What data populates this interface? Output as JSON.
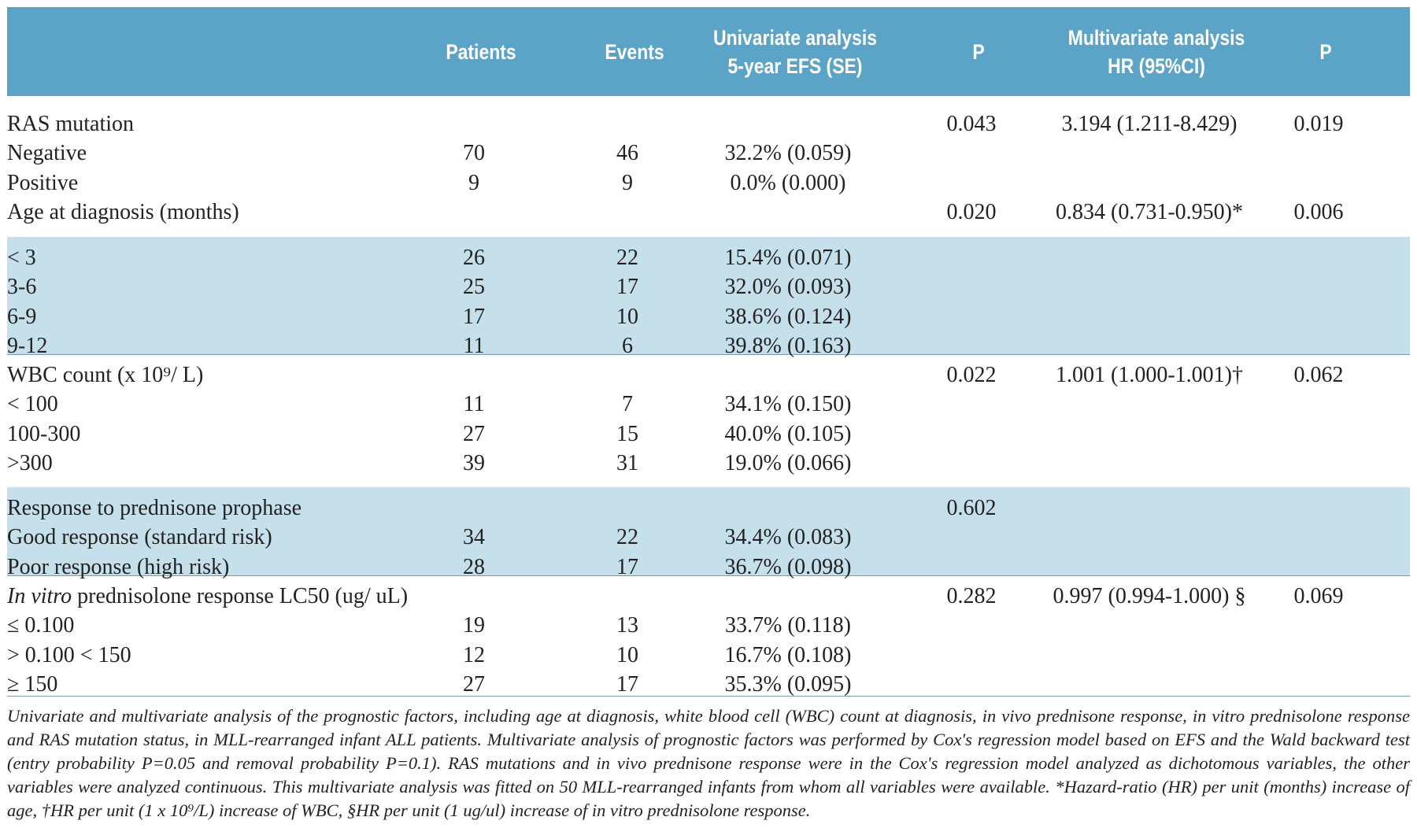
{
  "table": {
    "header": [
      [],
      [
        "Patients"
      ],
      [
        "Events"
      ],
      [
        "Univariate analysis",
        "5-year EFS (SE)"
      ],
      [
        "P"
      ],
      [
        "Multivariate analysis",
        "HR (95%CI)"
      ],
      [
        "P"
      ]
    ],
    "groups": [
      {
        "shaded": false,
        "rows": [
          [
            "RAS mutation",
            null,
            null,
            null,
            "0.043",
            "3.194 (1.211-8.429)",
            "0.019"
          ],
          [
            "Negative",
            "70",
            "46",
            "32.2% (0.059)",
            null,
            null,
            null
          ],
          [
            "Positive",
            "9",
            "9",
            "0.0% (0.000)",
            null,
            null,
            null
          ],
          [
            "Age at diagnosis (months)",
            null,
            null,
            null,
            "0.020",
            "0.834 (0.731-0.950)*",
            "0.006"
          ]
        ]
      },
      {
        "shaded": true,
        "rows": [
          [
            "< 3",
            "26",
            "22",
            "15.4% (0.071)",
            null,
            null,
            null
          ],
          [
            "3-6",
            "25",
            "17",
            "32.0% (0.093)",
            null,
            null,
            null
          ],
          [
            "6-9",
            "17",
            "10",
            "38.6% (0.124)",
            null,
            null,
            null
          ],
          [
            "9-12",
            "11",
            "6",
            "39.8% (0.163)",
            null,
            null,
            null
          ]
        ]
      },
      {
        "shaded": false,
        "rows": [
          [
            "WBC count (x 10⁹/ L)",
            null,
            null,
            null,
            "0.022",
            "1.001 (1.000-1.001)†",
            "0.062"
          ],
          [
            "< 100",
            "11",
            "7",
            "34.1% (0.150)",
            null,
            null,
            null
          ],
          [
            "100-300",
            "27",
            "15",
            "40.0% (0.105)",
            null,
            null,
            null
          ],
          [
            ">300",
            "39",
            "31",
            "19.0% (0.066)",
            null,
            null,
            null
          ]
        ]
      },
      {
        "shaded": true,
        "rows": [
          [
            "Response to prednisone prophase",
            null,
            null,
            null,
            "0.602",
            null,
            null
          ],
          [
            "Good response (standard risk)",
            "34",
            "22",
            "34.4% (0.083)",
            null,
            null,
            null
          ],
          [
            "Poor response (high risk)",
            "28",
            "17",
            "36.7% (0.098)",
            null,
            null,
            null
          ]
        ]
      },
      {
        "shaded": false,
        "rows": [
          [
            [
              {
                "text": "In vitro",
                "italic": true
              },
              {
                "text": " prednisolone response LC50 (ug/ uL)"
              }
            ],
            null,
            null,
            null,
            "0.282",
            "0.997 (0.994-1.000) §",
            "0.069"
          ],
          [
            "≤ 0.100",
            "19",
            "13",
            "33.7% (0.118)",
            null,
            null,
            null
          ],
          [
            "> 0.100 < 150",
            "12",
            "10",
            "16.7% (0.108)",
            null,
            null,
            null
          ],
          [
            "≥ 150",
            "27",
            "17",
            "35.3% (0.095)",
            null,
            null,
            null
          ]
        ]
      }
    ],
    "caption": "Univariate and multivariate analysis of the prognostic factors, including age at diagnosis, white blood cell (WBC) count at diagnosis, in vivo prednisone response, in vitro prednisolone response and RAS mutation status, in MLL-rearranged infant ALL patients. Multivariate analysis of prognostic factors was performed by Cox's regression model based on EFS and the Wald backward test (entry probability P=0.05 and removal probability P=0.1). RAS mutations and in vivo prednisone response were in the Cox's regression model analyzed as dichotomous variables, the other variables were analyzed continuous. This multivariate analysis was fitted on 50 MLL-rearranged infants from whom all variables were available. *Hazard-ratio (HR) per unit (months) increase of age, †HR per unit (1 x 10⁹/L) increase of WBC, §HR per unit (1 ug/ul) increase of in vitro prednisolone response."
  }
}
